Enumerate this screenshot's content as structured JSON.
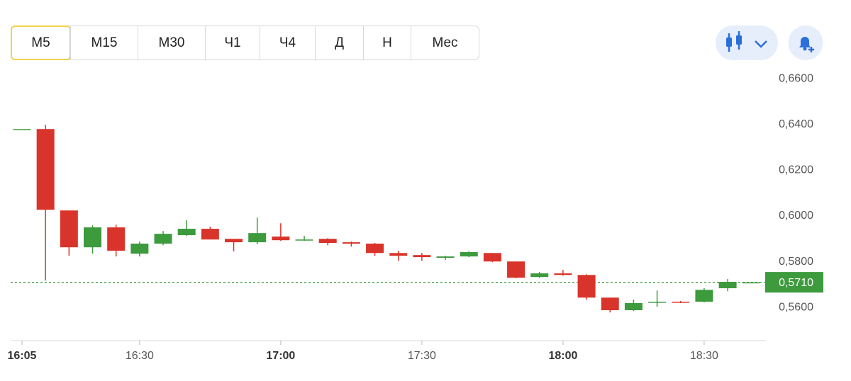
{
  "timeframes": [
    "М5",
    "М15",
    "М30",
    "Ч1",
    "Ч4",
    "Д",
    "Н",
    "Мес"
  ],
  "selected_timeframe": 0,
  "chart_data": {
    "type": "candlestick",
    "categories": [
      "16:05",
      null,
      null,
      null,
      null,
      "16:30",
      null,
      null,
      null,
      null,
      null,
      "17:00",
      null,
      null,
      null,
      null,
      null,
      "17:30",
      null,
      null,
      null,
      null,
      null,
      "18:00",
      null,
      null,
      null,
      null,
      null,
      "18:30",
      null,
      null
    ],
    "open": [
      0.638,
      0.638,
      0.6024,
      0.5863,
      0.595,
      0.5835,
      0.5879,
      0.5916,
      0.5944,
      0.59,
      0.5885,
      0.591,
      0.5894,
      0.59,
      0.5885,
      0.5879,
      0.5838,
      0.5829,
      0.5817,
      0.5823,
      0.5838,
      0.5801,
      0.5733,
      0.5749,
      0.5742,
      0.5643,
      0.5588,
      0.5622,
      0.5625,
      0.5625,
      0.5684,
      0.571
    ],
    "high": [
      0.638,
      0.6399,
      0.6024,
      0.5959,
      0.5962,
      0.5888,
      0.5934,
      0.5981,
      0.5953,
      0.59,
      0.5993,
      0.5968,
      0.5913,
      0.5903,
      0.5888,
      0.5882,
      0.5848,
      0.5838,
      0.5826,
      0.5845,
      0.5838,
      0.5801,
      0.5755,
      0.5764,
      0.5745,
      0.5643,
      0.5634,
      0.5674,
      0.5628,
      0.5684,
      0.5724,
      0.5712
    ],
    "low": [
      0.638,
      0.5718,
      0.5826,
      0.5835,
      0.5823,
      0.5823,
      0.5872,
      0.5913,
      0.5897,
      0.5845,
      0.5876,
      0.5891,
      0.5891,
      0.5872,
      0.5866,
      0.5826,
      0.5804,
      0.5804,
      0.5807,
      0.582,
      0.5798,
      0.5727,
      0.573,
      0.5739,
      0.5634,
      0.5578,
      0.5584,
      0.5603,
      0.5619,
      0.5622,
      0.5671,
      0.571
    ],
    "close": [
      0.638,
      0.6027,
      0.5863,
      0.595,
      0.5848,
      0.5879,
      0.5922,
      0.5944,
      0.5897,
      0.5885,
      0.5925,
      0.5894,
      0.5897,
      0.5882,
      0.5879,
      0.5838,
      0.5826,
      0.582,
      0.5823,
      0.5842,
      0.5801,
      0.573,
      0.5749,
      0.5742,
      0.5643,
      0.5588,
      0.5619,
      0.5625,
      0.5622,
      0.5677,
      0.5712,
      0.571
    ],
    "up_color": "#3d9a3d",
    "down_color": "#d9342b",
    "ylim": [
      0.5458,
      0.665
    ],
    "yticks": [
      {
        "value": 0.66,
        "label": "0,6600"
      },
      {
        "value": 0.64,
        "label": "0,6400"
      },
      {
        "value": 0.62,
        "label": "0,6200"
      },
      {
        "value": 0.6,
        "label": "0,6000"
      },
      {
        "value": 0.58,
        "label": "0,5800"
      },
      {
        "value": 0.56,
        "label": "0,5600"
      }
    ],
    "current_price": 0.571,
    "current_price_label": "0,5710",
    "current_price_color": "#3d9a3d"
  }
}
